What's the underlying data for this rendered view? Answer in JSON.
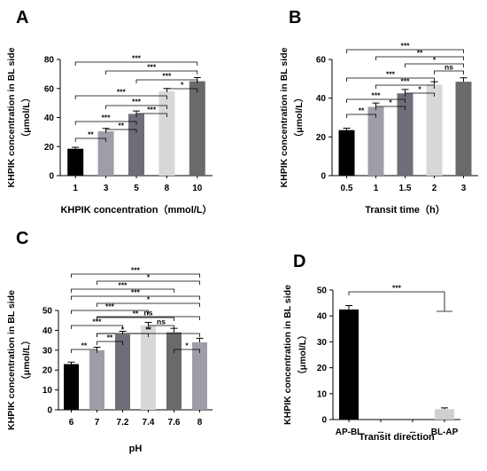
{
  "chart_data": [
    {
      "type": "bar",
      "panel": "A",
      "categories": [
        "1",
        "3",
        "5",
        "8",
        "10"
      ],
      "values": [
        18.5,
        30.5,
        42.5,
        58,
        65
      ],
      "errors": [
        1,
        2,
        2,
        2,
        2.5
      ],
      "colors": [
        "#000000",
        "#9e9ea8",
        "#6e6e78",
        "#d8d8d8",
        "#6a6a6a"
      ],
      "xlabel": "KHPIK concentration（mmol/L）",
      "ylabel_line1": "KHPIK concentration in BL side",
      "ylabel_line2": "（μmol/L）",
      "ylim": [
        0,
        80
      ],
      "yticks": [
        "0",
        "20",
        "40",
        "60",
        "80"
      ],
      "grid": false,
      "significance": [
        {
          "from": 0,
          "to": 4,
          "label": "***"
        },
        {
          "from": 1,
          "to": 4,
          "label": "***"
        },
        {
          "from": 2,
          "to": 4,
          "label": "***"
        },
        {
          "from": 3,
          "to": 4,
          "label": "*"
        },
        {
          "from": 0,
          "to": 3,
          "label": "***"
        },
        {
          "from": 1,
          "to": 3,
          "label": "***"
        },
        {
          "from": 2,
          "to": 3,
          "label": "***"
        },
        {
          "from": 0,
          "to": 2,
          "label": "***"
        },
        {
          "from": 1,
          "to": 2,
          "label": "**"
        },
        {
          "from": 0,
          "to": 1,
          "label": "**"
        }
      ]
    },
    {
      "type": "bar",
      "panel": "B",
      "categories": [
        "0.5",
        "1",
        "1.5",
        "2",
        "3"
      ],
      "values": [
        23.5,
        35.5,
        42.5,
        47,
        48.5
      ],
      "errors": [
        1,
        2,
        2,
        1.5,
        2
      ],
      "colors": [
        "#000000",
        "#9e9ea8",
        "#6e6e78",
        "#d8d8d8",
        "#6a6a6a"
      ],
      "xlabel": "Transit time（h）",
      "ylabel_line1": "KHPIK concentration in BL side",
      "ylabel_line2": "（μmol/L）",
      "ylim": [
        0,
        60
      ],
      "yticks": [
        "0",
        "20",
        "40",
        "60"
      ],
      "grid": false,
      "significance": [
        {
          "from": 0,
          "to": 4,
          "label": "***"
        },
        {
          "from": 1,
          "to": 4,
          "label": "**"
        },
        {
          "from": 2,
          "to": 4,
          "label": "*"
        },
        {
          "from": 3,
          "to": 4,
          "label": "ns"
        },
        {
          "from": 0,
          "to": 3,
          "label": "***"
        },
        {
          "from": 1,
          "to": 3,
          "label": "***"
        },
        {
          "from": 2,
          "to": 3,
          "label": "*"
        },
        {
          "from": 0,
          "to": 2,
          "label": "***"
        },
        {
          "from": 1,
          "to": 2,
          "label": "*"
        },
        {
          "from": 0,
          "to": 1,
          "label": "**"
        }
      ]
    },
    {
      "type": "bar",
      "panel": "C",
      "categories": [
        "6",
        "7",
        "7.2",
        "7.4",
        "7.6",
        "8"
      ],
      "values": [
        23,
        30,
        38,
        42.5,
        39,
        34
      ],
      "errors": [
        1,
        1.5,
        1.5,
        1.5,
        2,
        2
      ],
      "colors": [
        "#000000",
        "#9e9ea8",
        "#6e6e78",
        "#d8d8d8",
        "#6a6a6a",
        "#9e9ea8"
      ],
      "xlabel": "pH",
      "ylabel_line1": "KHPIK concentration in BL side",
      "ylabel_line2": "（μmol/L）",
      "ylim": [
        0,
        50
      ],
      "yticks": [
        "0",
        "10",
        "20",
        "30",
        "40",
        "50"
      ],
      "grid": false,
      "significance": [
        {
          "from": 0,
          "to": 5,
          "label": "***"
        },
        {
          "from": 1,
          "to": 5,
          "label": "*"
        },
        {
          "from": 0,
          "to": 4,
          "label": "***"
        },
        {
          "from": 0,
          "to": 5,
          "label": "***"
        },
        {
          "from": 1,
          "to": 5,
          "label": "*"
        },
        {
          "from": 0,
          "to": 3,
          "label": "***"
        },
        {
          "from": 1,
          "to": 4,
          "label": "**"
        },
        {
          "from": 1,
          "to": 5,
          "label": "ns"
        },
        {
          "from": 0,
          "to": 2,
          "label": "***"
        },
        {
          "from": 1,
          "to": 3,
          "label": "*"
        },
        {
          "from": 3,
          "to": 4,
          "label": "ns"
        },
        {
          "from": 1,
          "to": 5,
          "label": "**"
        },
        {
          "from": 0,
          "to": 1,
          "label": "**"
        },
        {
          "from": 1,
          "to": 2,
          "label": "**"
        },
        {
          "from": 4,
          "to": 5,
          "label": "*"
        }
      ]
    },
    {
      "type": "bar",
      "panel": "D",
      "categories": [
        "AP-BL",
        "--",
        "--",
        "BL-AP"
      ],
      "values": [
        42.5,
        0,
        0,
        4
      ],
      "errors": [
        1.5,
        0,
        0,
        0.5
      ],
      "colors": [
        "#000000",
        "#000000",
        "#000000",
        "#d0d0d0"
      ],
      "xlabel": "Transit direction",
      "ylabel_line1": "KHPIK concentration in BL side",
      "ylabel_line2": "（μmol/L）",
      "ylim": [
        0,
        50
      ],
      "yticks": [
        "0",
        "10",
        "20",
        "30",
        "40",
        "50"
      ],
      "grid": false,
      "significance": [
        {
          "from": 0,
          "to": 3,
          "label": "***"
        }
      ]
    }
  ]
}
